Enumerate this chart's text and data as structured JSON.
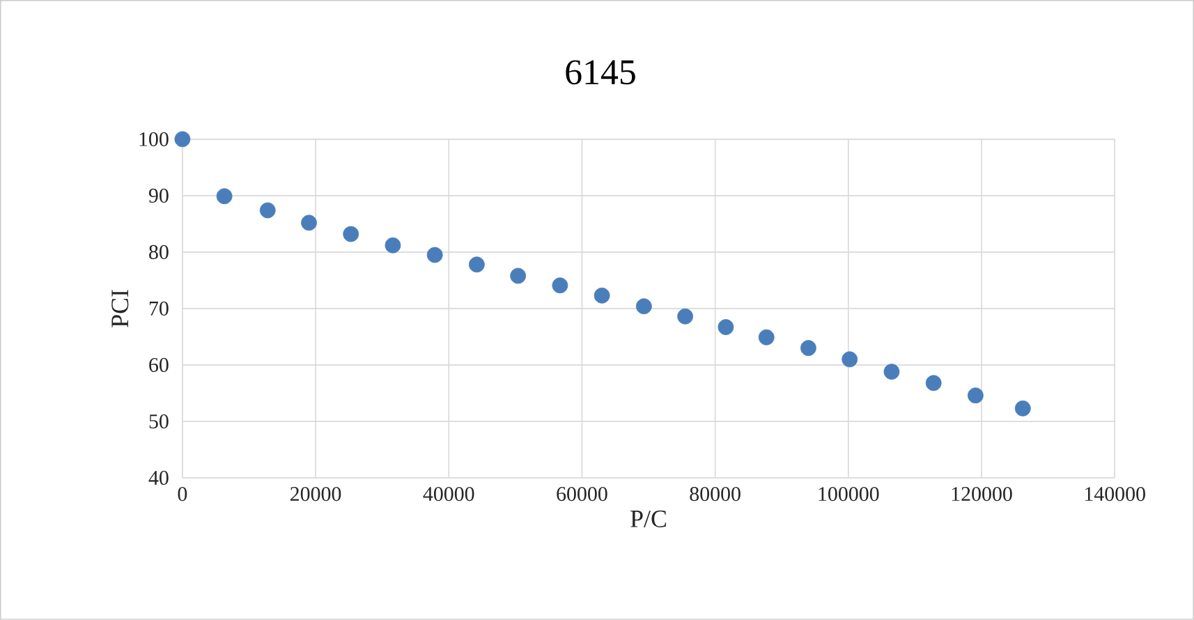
{
  "chart_data": {
    "type": "scatter",
    "title": "6145",
    "xlabel": "P/C",
    "ylabel": "PCI",
    "x": [
      0,
      6300,
      12800,
      19000,
      25300,
      31600,
      37900,
      44200,
      50400,
      56700,
      63000,
      69300,
      75500,
      81600,
      87700,
      94000,
      100200,
      106500,
      112800,
      119100,
      126200
    ],
    "values": [
      100,
      89.9,
      87.4,
      85.2,
      83.2,
      81.2,
      79.5,
      77.8,
      75.8,
      74.1,
      72.3,
      70.4,
      68.6,
      66.7,
      64.9,
      63.0,
      61.0,
      58.8,
      56.8,
      54.6,
      52.3
    ],
    "color": "#4a7ebb",
    "marker": "circle",
    "grid": true,
    "xlim": [
      0,
      140000
    ],
    "xticks": [
      0,
      20000,
      40000,
      60000,
      80000,
      100000,
      120000,
      140000
    ],
    "ylim": [
      40,
      100
    ],
    "yticks": [
      40,
      50,
      60,
      70,
      80,
      90,
      100
    ]
  }
}
